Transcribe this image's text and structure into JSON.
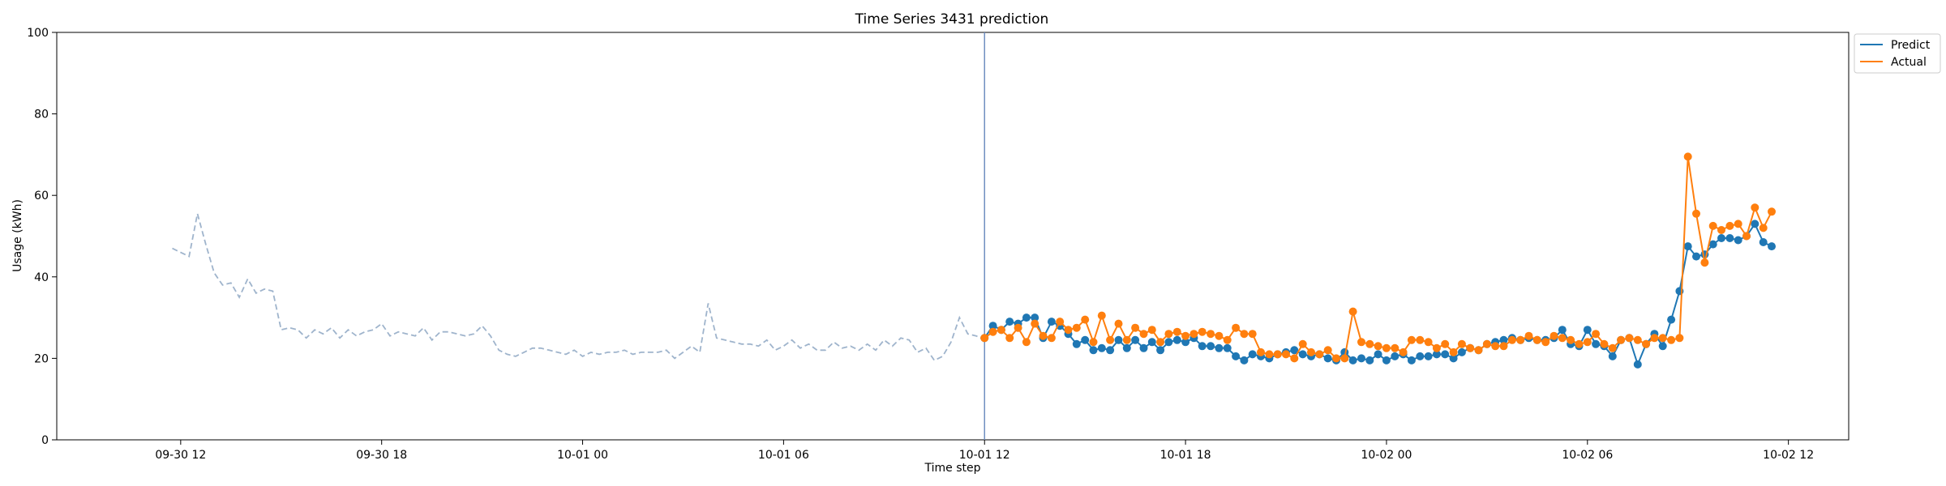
{
  "chart_data": {
    "type": "line",
    "title": "Time Series 3431 prediction",
    "xlabel": "Time step",
    "ylabel": "Usage (kWh)",
    "ylim": [
      0,
      100
    ],
    "xlim": [
      "2023-09-30T08:18",
      "2023-10-02T13:48"
    ],
    "x_ticks": [
      {
        "t": "2023-09-30T12:00",
        "label": "09-30 12"
      },
      {
        "t": "2023-09-30T18:00",
        "label": "09-30 18"
      },
      {
        "t": "2023-10-01T00:00",
        "label": "10-01 00"
      },
      {
        "t": "2023-10-01T06:00",
        "label": "10-01 06"
      },
      {
        "t": "2023-10-01T12:00",
        "label": "10-01 12"
      },
      {
        "t": "2023-10-01T18:00",
        "label": "10-01 18"
      },
      {
        "t": "2023-10-02T00:00",
        "label": "10-02 00"
      },
      {
        "t": "2023-10-02T06:00",
        "label": "10-02 06"
      },
      {
        "t": "2023-10-02T12:00",
        "label": "10-02 12"
      }
    ],
    "y_ticks": [
      0,
      20,
      40,
      60,
      80,
      100
    ],
    "grid": false,
    "legend": "outside-top-right",
    "forecast_start": "2023-10-01T12:00",
    "series": [
      {
        "name": "",
        "role": "history",
        "color": "#9fb4cc",
        "style": "dashed",
        "start": "2023-09-30T11:45",
        "step_minutes": 15,
        "values": [
          47,
          46,
          45,
          55.5,
          48,
          41,
          38,
          38.5,
          35,
          39.5,
          36,
          37,
          36.5,
          27,
          27.5,
          27,
          25,
          27,
          26,
          27.5,
          25,
          27,
          25.5,
          26.5,
          27,
          28.5,
          25.5,
          26.5,
          26,
          25.5,
          27.5,
          24.5,
          26.5,
          26.5,
          26,
          25.5,
          26,
          28,
          25.5,
          22,
          21,
          20.5,
          21.5,
          22.5,
          22.5,
          22,
          21.5,
          21,
          22,
          20.5,
          21.5,
          21,
          21.5,
          21.5,
          22,
          21,
          21.5,
          21.5,
          21.5,
          22,
          20,
          21.5,
          23,
          21.5,
          33.5,
          25,
          24.5,
          24,
          23.5,
          23.5,
          23,
          24.5,
          22,
          23,
          24.5,
          22.5,
          23.5,
          22,
          22,
          24,
          22.5,
          23,
          22,
          23.5,
          22,
          24.5,
          23,
          25,
          24.5,
          21.5,
          22.5,
          19.5,
          20.5,
          24,
          30,
          26,
          25.5,
          24.5
        ]
      },
      {
        "name": "Predict",
        "role": "prediction",
        "color": "#1f77b4",
        "start": "2023-10-01T12:00",
        "step_minutes": 15,
        "values": [
          25,
          28,
          27,
          29,
          28.5,
          30,
          30,
          25,
          29,
          28,
          26,
          23.5,
          24.5,
          22,
          22.5,
          22,
          24.5,
          22.5,
          24.5,
          22.5,
          24,
          22,
          24,
          24.5,
          24,
          25,
          23,
          23,
          22.5,
          22.5,
          20.5,
          19.5,
          21,
          20.5,
          20,
          21,
          21.5,
          22,
          21,
          20.5,
          21,
          20,
          19.5,
          21.5,
          19.5,
          20,
          19.5,
          21,
          19.5,
          20.5,
          21,
          19.5,
          20.5,
          20.5,
          21,
          21,
          20,
          21.5,
          22.5,
          22,
          23.5,
          24,
          24.5,
          25,
          24.5,
          25,
          24.5,
          24.5,
          25,
          27,
          23.5,
          23,
          27,
          23.5,
          23,
          20.5,
          24.5,
          25,
          18.5,
          23.5,
          26,
          23,
          29.5,
          36.5,
          47.5,
          45,
          45.5,
          48,
          49.5,
          49.5,
          49,
          50,
          53,
          48.5,
          47.5
        ]
      },
      {
        "name": "Actual",
        "role": "actual",
        "color": "#ff7f0e",
        "start": "2023-10-01T12:00",
        "step_minutes": 15,
        "values": [
          25,
          26.5,
          27,
          25,
          27.5,
          24,
          28.5,
          25.5,
          25,
          29,
          27,
          27.5,
          29.5,
          24,
          30.5,
          24.5,
          28.5,
          24.5,
          27.5,
          26,
          27,
          24,
          26,
          26.5,
          25.5,
          26,
          26.5,
          26,
          25.5,
          24.5,
          27.5,
          26,
          26,
          21.5,
          21,
          21,
          21,
          20,
          23.5,
          21.5,
          21,
          22,
          20,
          20,
          31.5,
          24,
          23.5,
          23,
          22.5,
          22.5,
          21.5,
          24.5,
          24.5,
          24,
          22.5,
          23.5,
          21.5,
          23.5,
          22.5,
          22,
          23.5,
          23,
          23,
          24.5,
          24.5,
          25.5,
          24.5,
          24,
          25.5,
          25,
          24.5,
          23.5,
          24,
          26,
          23.5,
          22.5,
          24.5,
          25,
          24.5,
          23.5,
          25,
          25,
          24.5,
          25,
          69.5,
          55.5,
          43.5,
          52.5,
          51.5,
          52.5,
          53,
          50,
          57,
          52,
          56
        ]
      }
    ]
  }
}
